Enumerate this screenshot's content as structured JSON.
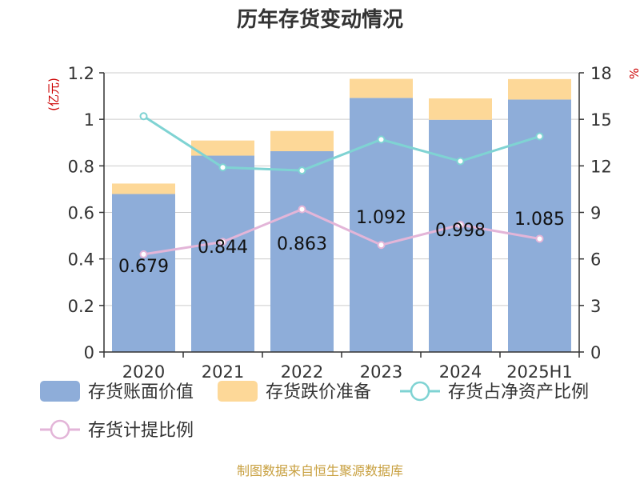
{
  "chart_data": {
    "type": "bar",
    "title": "历年存货变动情况",
    "categories": [
      "2020",
      "2021",
      "2022",
      "2023",
      "2024",
      "2025H1"
    ],
    "series": [
      {
        "name": "存货账面价值",
        "kind": "bar",
        "axis": "left",
        "values": [
          0.679,
          0.844,
          0.863,
          1.092,
          0.998,
          1.085
        ]
      },
      {
        "name": "存货跌价准备",
        "kind": "bar",
        "axis": "left",
        "values": [
          0.045,
          0.065,
          0.087,
          0.082,
          0.092,
          0.088
        ]
      },
      {
        "name": "存货占净资产比例",
        "kind": "line",
        "axis": "right",
        "values": [
          15.2,
          11.9,
          11.7,
          13.7,
          12.3,
          13.9
        ]
      },
      {
        "name": "存货计提比例",
        "kind": "line",
        "axis": "right",
        "values": [
          6.3,
          7.1,
          9.2,
          6.9,
          8.2,
          7.3
        ]
      }
    ],
    "data_labels": [
      "0.679",
      "0.844",
      "0.863",
      "1.092",
      "0.998",
      "1.085"
    ],
    "left_axis": {
      "unit": "(亿元)",
      "ylim": [
        0,
        1.2
      ],
      "ticks": [
        "0",
        "0.2",
        "0.4",
        "0.6",
        "0.8",
        "1",
        "1.2"
      ]
    },
    "right_axis": {
      "unit": "%",
      "ylim": [
        0,
        18
      ],
      "ticks": [
        "0",
        "3",
        "6",
        "9",
        "12",
        "15",
        "18"
      ]
    },
    "grid": true,
    "legend_position": "bottom",
    "source": "制图数据来自恒生聚源数据库",
    "colors": {
      "bar_main": "#8eadd9",
      "bar_reserve": "#fdd898",
      "line_ratio": "#7fd3d3",
      "line_provision": "#e3b5d8",
      "unit_text": "#cc0000",
      "source_text": "#c8a040"
    }
  }
}
